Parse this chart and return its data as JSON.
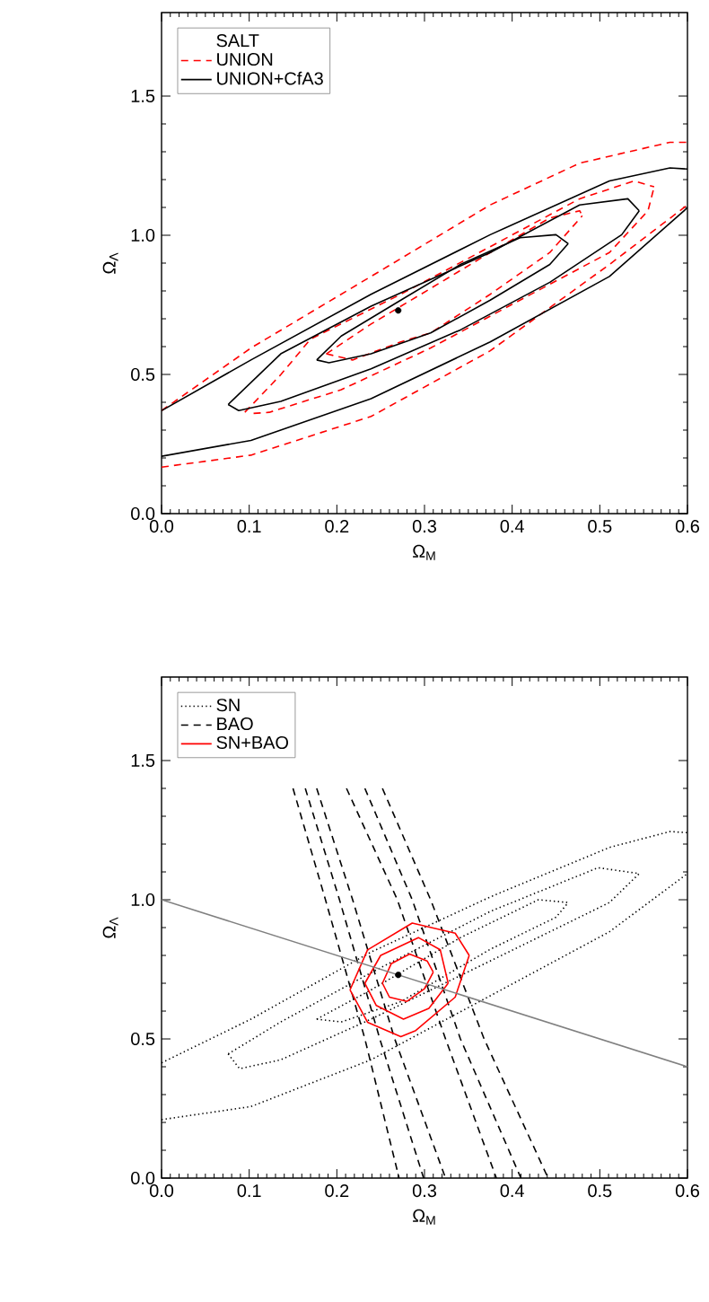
{
  "chart_data": [
    {
      "type": "line",
      "xlabel": "Ω$_{M}$",
      "ylabel": "Ω$_{Λ}$",
      "legend_title": "SALT",
      "legend": "top left",
      "xlim": [
        0,
        0.6
      ],
      "ylim": [
        0,
        1.8
      ],
      "xticks": [
        {
          "value": 0,
          "label": "0.0"
        },
        {
          "value": 0.1,
          "label": "0.1"
        },
        {
          "value": 0.2,
          "label": "0.2"
        },
        {
          "value": 0.3,
          "label": "0.3"
        },
        {
          "value": 0.4,
          "label": "0.4"
        },
        {
          "value": 0.5,
          "label": "0.5"
        },
        {
          "value": 0.6,
          "label": "0.6"
        }
      ],
      "yticks": [
        {
          "value": 0,
          "label": "0.0"
        },
        {
          "value": 0.5,
          "label": "0.5"
        },
        {
          "value": 1,
          "label": "1.0"
        },
        {
          "value": 1.5,
          "label": "1.5"
        }
      ],
      "series": [
        {
          "name": "UNION",
          "color": "#ff0000",
          "line_style": "dashed",
          "x": [
            0.188,
            0.239,
            0.307,
            0.375,
            0.443,
            0.477,
            0.48
          ],
          "values": [
            0.574,
            0.681,
            0.809,
            0.938,
            1.062,
            1.088,
            1.07
          ]
        },
        {
          "color": "#ff0000",
          "line_style": "dashed",
          "x": [
            0.188,
            0.218,
            0.273,
            0.307,
            0.375,
            0.443,
            0.48
          ],
          "values": [
            0.574,
            0.552,
            0.617,
            0.649,
            0.788,
            0.938,
            1.07
          ]
        },
        {
          "color": "#ff0000",
          "line_style": "dashed",
          "x": [
            0.095,
            0.136,
            0.17,
            0.273,
            0.375,
            0.477,
            0.539,
            0.562
          ],
          "values": [
            0.364,
            0.499,
            0.627,
            0.788,
            0.959,
            1.131,
            1.195,
            1.174
          ]
        },
        {
          "color": "#ff0000",
          "line_style": "dashed",
          "x": [
            0.105,
            0.123,
            0.205,
            0.307,
            0.409,
            0.511,
            0.555,
            0.562
          ],
          "values": [
            0.36,
            0.364,
            0.445,
            0.595,
            0.767,
            0.938,
            1.088,
            1.174
          ]
        },
        {
          "color": "#ff0000",
          "line_style": "dashed",
          "x": [
            0,
            0.102,
            0.239,
            0.375,
            0.477,
            0.58,
            0.6
          ],
          "values": [
            0.37,
            0.595,
            0.852,
            1.109,
            1.259,
            1.334,
            1.334
          ]
        },
        {
          "color": "#ff0000",
          "line_style": "dashed",
          "x": [
            0,
            0.102,
            0.239,
            0.375,
            0.511,
            0.6
          ],
          "values": [
            0.167,
            0.21,
            0.349,
            0.585,
            0.895,
            1.109
          ]
        },
        {
          "name": "UNION+CfA3",
          "color": "#000000",
          "line_style": "solid",
          "x": [
            0.177,
            0.205,
            0.273,
            0.341,
            0.409,
            0.45,
            0.464
          ],
          "values": [
            0.552,
            0.638,
            0.767,
            0.895,
            0.991,
            1.002,
            0.97
          ]
        },
        {
          "color": "#000000",
          "line_style": "solid",
          "x": [
            0.177,
            0.191,
            0.239,
            0.307,
            0.375,
            0.443,
            0.464
          ],
          "values": [
            0.552,
            0.542,
            0.574,
            0.649,
            0.767,
            0.895,
            0.97
          ]
        },
        {
          "color": "#000000",
          "line_style": "solid",
          "x": [
            0.076,
            0.136,
            0.239,
            0.375,
            0.477,
            0.532,
            0.545
          ],
          "values": [
            0.392,
            0.574,
            0.745,
            0.938,
            1.109,
            1.131,
            1.088
          ]
        },
        {
          "color": "#000000",
          "line_style": "solid",
          "x": [
            0.076,
            0.088,
            0.136,
            0.239,
            0.341,
            0.443,
            0.525,
            0.545
          ],
          "values": [
            0.392,
            0.37,
            0.403,
            0.52,
            0.66,
            0.831,
            1.002,
            1.088
          ]
        },
        {
          "color": "#000000",
          "line_style": "solid",
          "x": [
            0,
            0.102,
            0.239,
            0.375,
            0.511,
            0.58,
            0.6
          ],
          "values": [
            0.37,
            0.552,
            0.788,
            1.002,
            1.195,
            1.242,
            1.238
          ]
        },
        {
          "color": "#000000",
          "line_style": "solid",
          "x": [
            0,
            0.102,
            0.239,
            0.375,
            0.511,
            0.6
          ],
          "values": [
            0.206,
            0.263,
            0.413,
            0.617,
            0.852,
            1.099
          ]
        },
        {
          "type": "scatter",
          "marker": "circle",
          "color": "#000000",
          "x": [
            0.27
          ],
          "values": [
            0.73
          ]
        }
      ]
    },
    {
      "type": "line",
      "xlabel": "Ω$_{M}$",
      "ylabel": "Ω$_{Λ}$",
      "legend": "top left",
      "xlim": [
        0,
        0.6
      ],
      "ylim": [
        0,
        1.8
      ],
      "xticks": [
        {
          "value": 0,
          "label": "0.0"
        },
        {
          "value": 0.1,
          "label": "0.1"
        },
        {
          "value": 0.2,
          "label": "0.2"
        },
        {
          "value": 0.3,
          "label": "0.3"
        },
        {
          "value": 0.4,
          "label": "0.4"
        },
        {
          "value": 0.5,
          "label": "0.5"
        },
        {
          "value": 0.6,
          "label": "0.6"
        }
      ],
      "yticks": [
        {
          "value": 0,
          "label": "0.0"
        },
        {
          "value": 0.5,
          "label": "0.5"
        },
        {
          "value": 1,
          "label": "1.0"
        },
        {
          "value": 1.5,
          "label": "1.5"
        }
      ],
      "series": [
        {
          "name": "SN",
          "color": "#000000",
          "line_style": "dotted",
          "x": [
            0.177,
            0.239,
            0.341,
            0.43,
            0.464
          ],
          "values": [
            0.571,
            0.676,
            0.864,
            1.0,
            0.99
          ]
        },
        {
          "color": "#000000",
          "line_style": "dotted",
          "x": [
            0.177,
            0.205,
            0.273,
            0.375,
            0.45,
            0.464
          ],
          "values": [
            0.571,
            0.561,
            0.634,
            0.822,
            0.937,
            0.99
          ]
        },
        {
          "color": "#000000",
          "line_style": "dotted",
          "x": [
            0.076,
            0.136,
            0.239,
            0.375,
            0.498,
            0.545
          ],
          "values": [
            0.446,
            0.561,
            0.738,
            0.958,
            1.115,
            1.094
          ]
        },
        {
          "color": "#000000",
          "line_style": "dotted",
          "x": [
            0.076,
            0.089,
            0.136,
            0.239,
            0.375,
            0.511,
            0.545
          ],
          "values": [
            0.446,
            0.393,
            0.425,
            0.571,
            0.78,
            0.99,
            1.094
          ]
        },
        {
          "color": "#000000",
          "line_style": "dotted",
          "x": [
            0,
            0.102,
            0.239,
            0.375,
            0.511,
            0.58,
            0.6
          ],
          "values": [
            0.414,
            0.571,
            0.812,
            1.01,
            1.188,
            1.245,
            1.241
          ]
        },
        {
          "color": "#000000",
          "line_style": "dotted",
          "x": [
            0,
            0.102,
            0.239,
            0.375,
            0.511,
            0.6
          ],
          "values": [
            0.21,
            0.257,
            0.425,
            0.655,
            0.885,
            1.094
          ]
        },
        {
          "name": "BAO",
          "color": "#000000",
          "line_style": "dashed",
          "x": [
            0.15,
            0.187,
            0.232,
            0.271
          ],
          "values": [
            1.4,
            1.0,
            0.5,
            0
          ]
        },
        {
          "color": "#000000",
          "line_style": "dashed",
          "x": [
            0.164,
            0.203,
            0.249,
            0.299
          ],
          "values": [
            1.4,
            1.0,
            0.5,
            0
          ]
        },
        {
          "color": "#000000",
          "line_style": "dashed",
          "x": [
            0.177,
            0.218,
            0.266,
            0.324
          ],
          "values": [
            1.4,
            1.0,
            0.5,
            0
          ]
        },
        {
          "color": "#000000",
          "line_style": "dashed",
          "x": [
            0.211,
            0.269,
            0.324,
            0.382
          ],
          "values": [
            1.4,
            1.0,
            0.5,
            0
          ]
        },
        {
          "color": "#000000",
          "line_style": "dashed",
          "x": [
            0.232,
            0.286,
            0.341,
            0.41
          ],
          "values": [
            1.4,
            1.0,
            0.5,
            0
          ]
        },
        {
          "color": "#000000",
          "line_style": "dashed",
          "x": [
            0.252,
            0.307,
            0.368,
            0.441
          ],
          "values": [
            1.4,
            1.0,
            0.5,
            0
          ]
        },
        {
          "name": "SN+BAO",
          "color": "#ff0000",
          "line_style": "solid",
          "x": [
            0.252,
            0.262,
            0.283,
            0.303,
            0.31
          ],
          "values": [
            0.7,
            0.77,
            0.805,
            0.78,
            0.74
          ]
        },
        {
          "color": "#ff0000",
          "line_style": "solid",
          "x": [
            0.252,
            0.26,
            0.28,
            0.3,
            0.31
          ],
          "values": [
            0.7,
            0.65,
            0.635,
            0.68,
            0.74
          ]
        },
        {
          "color": "#ff0000",
          "line_style": "solid",
          "x": [
            0.232,
            0.25,
            0.293,
            0.318,
            0.327
          ],
          "values": [
            0.7,
            0.8,
            0.864,
            0.82,
            0.7
          ]
        },
        {
          "color": "#ff0000",
          "line_style": "solid",
          "x": [
            0.232,
            0.245,
            0.276,
            0.305,
            0.327
          ],
          "values": [
            0.7,
            0.62,
            0.571,
            0.61,
            0.7
          ]
        },
        {
          "color": "#ff0000",
          "line_style": "solid",
          "x": [
            0.215,
            0.235,
            0.286,
            0.335,
            0.351
          ],
          "values": [
            0.676,
            0.82,
            0.916,
            0.88,
            0.8
          ]
        },
        {
          "color": "#ff0000",
          "line_style": "solid",
          "x": [
            0.215,
            0.235,
            0.273,
            0.29,
            0.335,
            0.351
          ],
          "values": [
            0.676,
            0.56,
            0.508,
            0.53,
            0.65,
            0.8
          ]
        },
        {
          "color": "#808080",
          "line_style": "solid",
          "x": [
            0,
            0.6
          ],
          "values": [
            1.0,
            0.4
          ]
        },
        {
          "type": "scatter",
          "marker": "circle",
          "color": "#000000",
          "x": [
            0.27
          ],
          "values": [
            0.73
          ]
        }
      ]
    }
  ]
}
